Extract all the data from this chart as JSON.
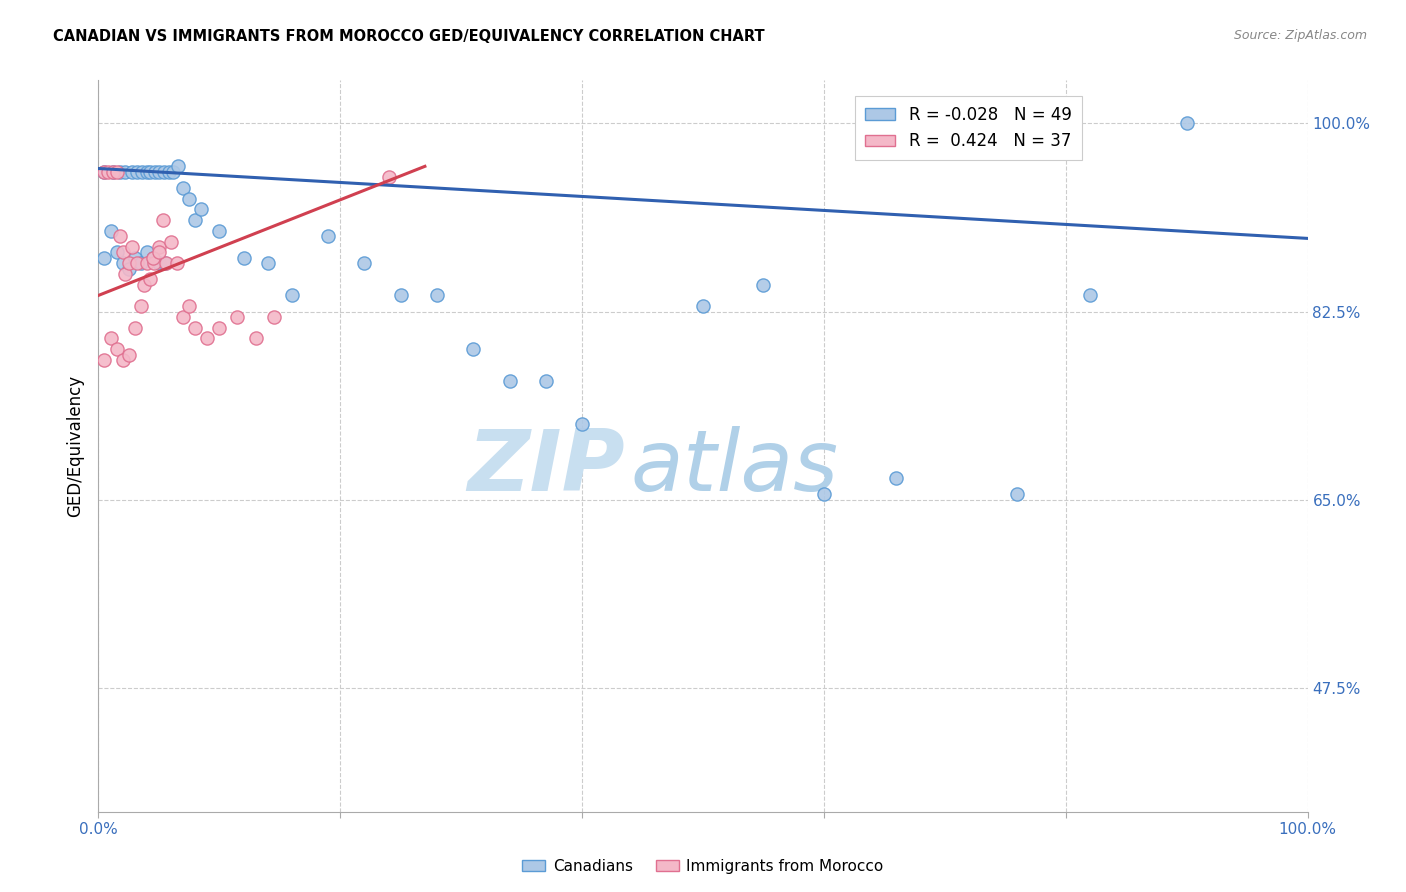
{
  "title": "CANADIAN VS IMMIGRANTS FROM MOROCCO GED/EQUIVALENCY CORRELATION CHART",
  "source": "Source: ZipAtlas.com",
  "ylabel": "GED/Equivalency",
  "xlim": [
    0.0,
    1.0
  ],
  "ylim": [
    0.36,
    1.04
  ],
  "yticks": [
    0.475,
    0.65,
    0.825,
    1.0
  ],
  "ytick_labels": [
    "47.5%",
    "65.0%",
    "82.5%",
    "100.0%"
  ],
  "grid_color": "#cccccc",
  "background_color": "#ffffff",
  "canadians_color": "#adc8e6",
  "canadians_edge_color": "#5b9bd5",
  "morocco_color": "#f4b8c8",
  "morocco_edge_color": "#e07090",
  "trend_canadian_color": "#3060b0",
  "trend_morocco_color": "#d04050",
  "legend_R_canadian": "-0.028",
  "legend_N_canadian": "49",
  "legend_R_morocco": "0.424",
  "legend_N_morocco": "37",
  "canadians_x": [
    0.005,
    0.012,
    0.018,
    0.022,
    0.028,
    0.032,
    0.036,
    0.04,
    0.043,
    0.047,
    0.05,
    0.054,
    0.058,
    0.062,
    0.066,
    0.07,
    0.075,
    0.08,
    0.085,
    0.1,
    0.12,
    0.14,
    0.16,
    0.19,
    0.22,
    0.25,
    0.28,
    0.31,
    0.34,
    0.37,
    0.4,
    0.5,
    0.55,
    0.6,
    0.66,
    0.76,
    0.82,
    0.9,
    0.005,
    0.01,
    0.015,
    0.02,
    0.025,
    0.03,
    0.035,
    0.04,
    0.045,
    0.05,
    0.055
  ],
  "canadians_y": [
    0.955,
    0.955,
    0.955,
    0.955,
    0.955,
    0.955,
    0.955,
    0.955,
    0.955,
    0.955,
    0.955,
    0.955,
    0.955,
    0.955,
    0.96,
    0.94,
    0.93,
    0.91,
    0.92,
    0.9,
    0.875,
    0.87,
    0.84,
    0.895,
    0.87,
    0.84,
    0.84,
    0.79,
    0.76,
    0.76,
    0.72,
    0.83,
    0.85,
    0.655,
    0.67,
    0.655,
    0.84,
    1.0,
    0.875,
    0.9,
    0.88,
    0.87,
    0.865,
    0.875,
    0.87,
    0.88,
    0.875,
    0.87,
    0.87
  ],
  "morocco_x": [
    0.005,
    0.008,
    0.012,
    0.015,
    0.018,
    0.02,
    0.022,
    0.025,
    0.028,
    0.032,
    0.035,
    0.038,
    0.04,
    0.043,
    0.046,
    0.05,
    0.053,
    0.056,
    0.06,
    0.065,
    0.07,
    0.075,
    0.08,
    0.09,
    0.1,
    0.115,
    0.13,
    0.145,
    0.005,
    0.01,
    0.015,
    0.02,
    0.025,
    0.03,
    0.045,
    0.05,
    0.24
  ],
  "morocco_y": [
    0.955,
    0.955,
    0.955,
    0.955,
    0.895,
    0.88,
    0.86,
    0.87,
    0.885,
    0.87,
    0.83,
    0.85,
    0.87,
    0.855,
    0.87,
    0.885,
    0.91,
    0.87,
    0.89,
    0.87,
    0.82,
    0.83,
    0.81,
    0.8,
    0.81,
    0.82,
    0.8,
    0.82,
    0.78,
    0.8,
    0.79,
    0.78,
    0.785,
    0.81,
    0.875,
    0.88,
    0.95
  ],
  "watermark_zip": "ZIP",
  "watermark_atlas": "atlas",
  "watermark_color_zip": "#c8dff0",
  "watermark_color_atlas": "#b0d0e8",
  "marker_size": 90,
  "marker_linewidth": 1.0,
  "trend_can_x0": 0.0,
  "trend_can_x1": 1.0,
  "trend_can_y0": 0.958,
  "trend_can_y1": 0.893,
  "trend_mor_x0": 0.0,
  "trend_mor_x1": 0.27,
  "trend_mor_y0": 0.84,
  "trend_mor_y1": 0.96
}
